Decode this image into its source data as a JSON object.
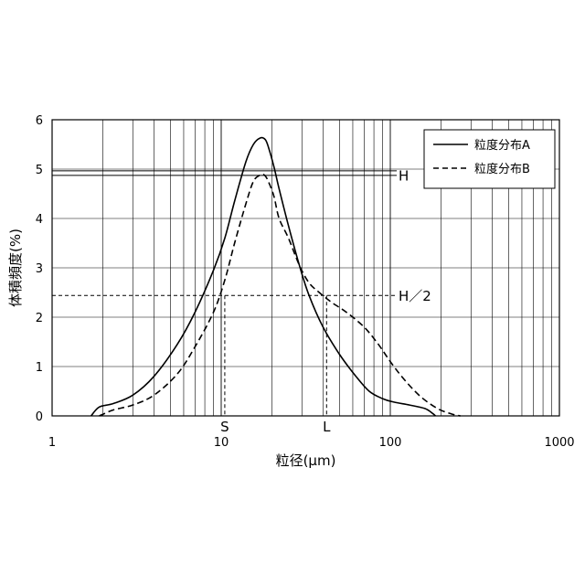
{
  "chart_data": {
    "type": "line",
    "title": "",
    "xlabel": "粒径(μm)",
    "ylabel": "体積頻度(%)",
    "x_scale": "log",
    "xlim": [
      1,
      1000
    ],
    "ylim": [
      0,
      6
    ],
    "x_ticks": [
      "1",
      "10",
      "100",
      "1000"
    ],
    "y_ticks": [
      "0",
      "1",
      "2",
      "3",
      "4",
      "5",
      "6"
    ],
    "grid": true,
    "legend": "top-right",
    "series": [
      {
        "name": "粒度分布A",
        "style": "solid",
        "x": [
          1.7,
          1.9,
          2.3,
          3.0,
          4.0,
          5.5,
          7.0,
          9.0,
          10.5,
          12.0,
          14.0,
          15.5,
          17.0,
          18.2,
          19.0,
          20.5,
          22.0,
          25.0,
          29.0,
          33.0,
          40.0,
          50.0,
          62.0,
          75.0,
          90.0,
          105.0,
          130.0,
          160.0,
          178.0,
          185.0
        ],
        "y": [
          0.0,
          0.18,
          0.25,
          0.42,
          0.8,
          1.45,
          2.1,
          2.95,
          3.6,
          4.35,
          5.15,
          5.5,
          5.63,
          5.6,
          5.45,
          5.05,
          4.6,
          3.85,
          3.05,
          2.45,
          1.8,
          1.25,
          0.82,
          0.5,
          0.35,
          0.28,
          0.22,
          0.15,
          0.05,
          0.0
        ]
      },
      {
        "name": "粒度分布B",
        "style": "dashed",
        "x": [
          1.9,
          2.3,
          3.0,
          4.0,
          5.5,
          7.0,
          9.0,
          10.5,
          12.0,
          14.0,
          15.5,
          17.0,
          18.0,
          19.0,
          20.5,
          22.0,
          25.0,
          29.0,
          33.0,
          38.0,
          45.0,
          55.0,
          70.0,
          85.0,
          100.0,
          120.0,
          150.0,
          190.0,
          230.0,
          260.0
        ],
        "y": [
          0.0,
          0.12,
          0.22,
          0.42,
          0.85,
          1.4,
          2.1,
          2.75,
          3.5,
          4.3,
          4.75,
          4.88,
          4.88,
          4.75,
          4.45,
          4.0,
          3.6,
          3.05,
          2.7,
          2.5,
          2.3,
          2.1,
          1.8,
          1.45,
          1.1,
          0.75,
          0.4,
          0.15,
          0.04,
          0.0
        ]
      }
    ],
    "reference_lines": {
      "H": {
        "label": "H",
        "y": 4.9
      },
      "H_half": {
        "label": "H／2",
        "y": 2.44
      },
      "S": {
        "label": "S",
        "x": 10.5
      },
      "L": {
        "label": "L",
        "x": 42.0
      }
    }
  }
}
